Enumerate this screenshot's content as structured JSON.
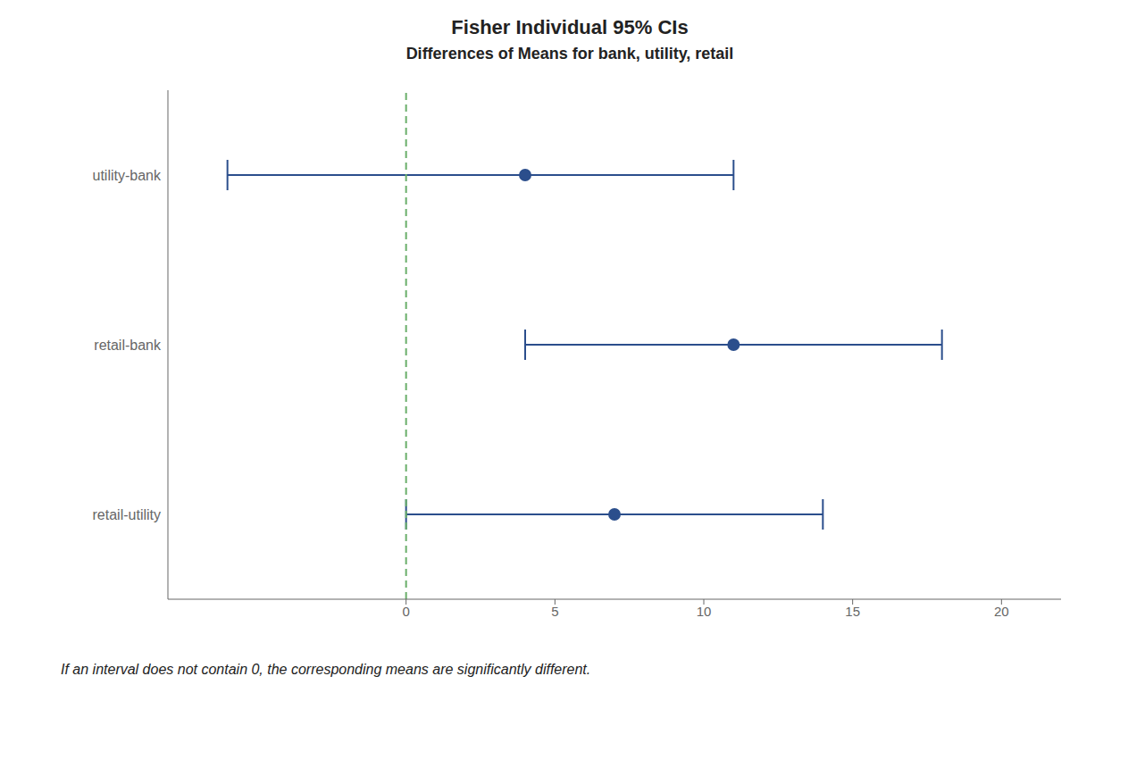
{
  "chart_data": {
    "type": "interval",
    "title": "Fisher Individual 95% CIs",
    "subtitle": "Differences of Means for bank, utility, retail",
    "categories": [
      "utility-bank",
      "retail-bank",
      "retail-utility"
    ],
    "values": [
      4,
      11,
      7
    ],
    "ci_low": [
      -6,
      4,
      0
    ],
    "ci_high": [
      11,
      18,
      14
    ],
    "color": "#2B4E8C",
    "xlim": [
      -8,
      22
    ],
    "xticks": [
      0,
      5,
      10,
      15,
      20
    ],
    "reference_line": {
      "value": 0,
      "color": "#6AAF6A"
    },
    "annotations": [
      "If an interval does not contain 0, the corresponding means are significantly different."
    ],
    "grid": false
  }
}
